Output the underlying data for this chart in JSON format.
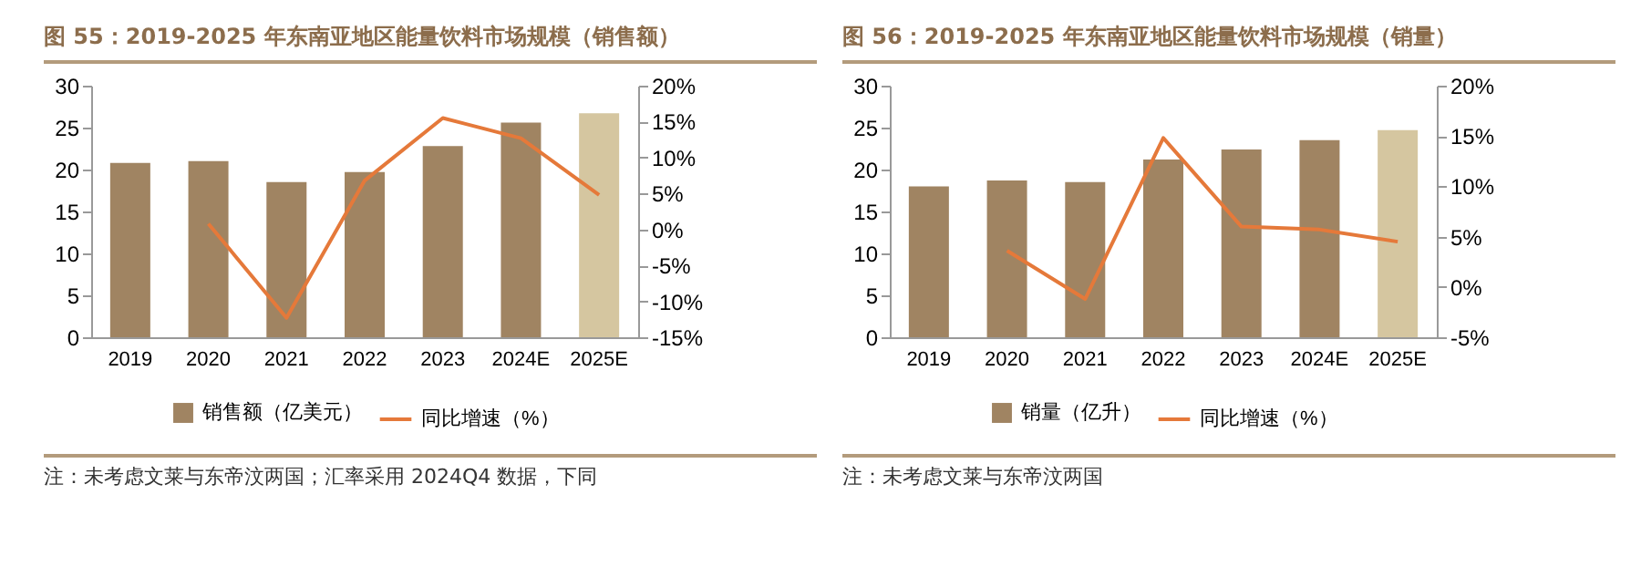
{
  "chart_data": [
    {
      "type": "bar",
      "title": "图 55：2019-2025 年东南亚地区能量饮料市场规模（销售额）",
      "categories": [
        "2019",
        "2020",
        "2021",
        "2022",
        "2023",
        "2024E",
        "2025E"
      ],
      "series": [
        {
          "name": "销售额（亿美元）",
          "color": "#a08462",
          "colors": [
            "#a08462",
            "#a08462",
            "#a08462",
            "#a08462",
            "#a08462",
            "#a08462",
            "#d5c6a0"
          ],
          "values": [
            20.8,
            21.0,
            18.5,
            19.7,
            22.8,
            25.6,
            26.7
          ]
        },
        {
          "name": "同比增速（%）",
          "type": "line",
          "axis": "y2",
          "color": "#e5793a",
          "values": [
            null,
            0.8,
            -12.3,
            6.8,
            15.5,
            12.7,
            4.8
          ]
        }
      ],
      "ylim": [
        0,
        30
      ],
      "yticks": [
        0,
        5,
        10,
        15,
        20,
        25,
        30
      ],
      "y2lim": [
        -15,
        20
      ],
      "y2ticks": [
        {
          "value": -15,
          "label": "-15%"
        },
        {
          "value": -10,
          "label": "-10%"
        },
        {
          "value": -5,
          "label": "-5%"
        },
        {
          "value": 0,
          "label": "0%"
        },
        {
          "value": 5,
          "label": "5%"
        },
        {
          "value": 10,
          "label": "10%"
        },
        {
          "value": 15,
          "label": "15%"
        },
        {
          "value": 20,
          "label": "20%"
        }
      ],
      "legend": "bottom",
      "annotations": [
        "注：未考虑文莱与东帝汶两国；汇率采用 2024Q4 数据，下同"
      ]
    },
    {
      "type": "bar",
      "title": "图 56：2019-2025 年东南亚地区能量饮料市场规模（销量）",
      "categories": [
        "2019",
        "2020",
        "2021",
        "2022",
        "2023",
        "2024E",
        "2025E"
      ],
      "series": [
        {
          "name": "销量（亿升）",
          "color": "#a08462",
          "colors": [
            "#a08462",
            "#a08462",
            "#a08462",
            "#a08462",
            "#a08462",
            "#a08462",
            "#d5c6a0"
          ],
          "values": [
            18.0,
            18.7,
            18.5,
            21.2,
            22.4,
            23.5,
            24.7
          ]
        },
        {
          "name": "同比增速（%）",
          "type": "line",
          "axis": "y2",
          "color": "#e5793a",
          "values": [
            null,
            3.6,
            -1.2,
            14.8,
            6.0,
            5.7,
            4.5
          ]
        }
      ],
      "ylim": [
        0,
        30
      ],
      "yticks": [
        0,
        5,
        10,
        15,
        20,
        25,
        30
      ],
      "y2lim": [
        -5,
        20
      ],
      "y2ticks": [
        {
          "value": -5,
          "label": "-5%"
        },
        {
          "value": 0,
          "label": "0%"
        },
        {
          "value": 5,
          "label": "5%"
        },
        {
          "value": 10,
          "label": "10%"
        },
        {
          "value": 15,
          "label": "15%"
        },
        {
          "value": 20,
          "label": "20%"
        }
      ],
      "legend": "bottom",
      "annotations": [
        "注：未考虑文莱与东帝汶两国"
      ]
    }
  ]
}
